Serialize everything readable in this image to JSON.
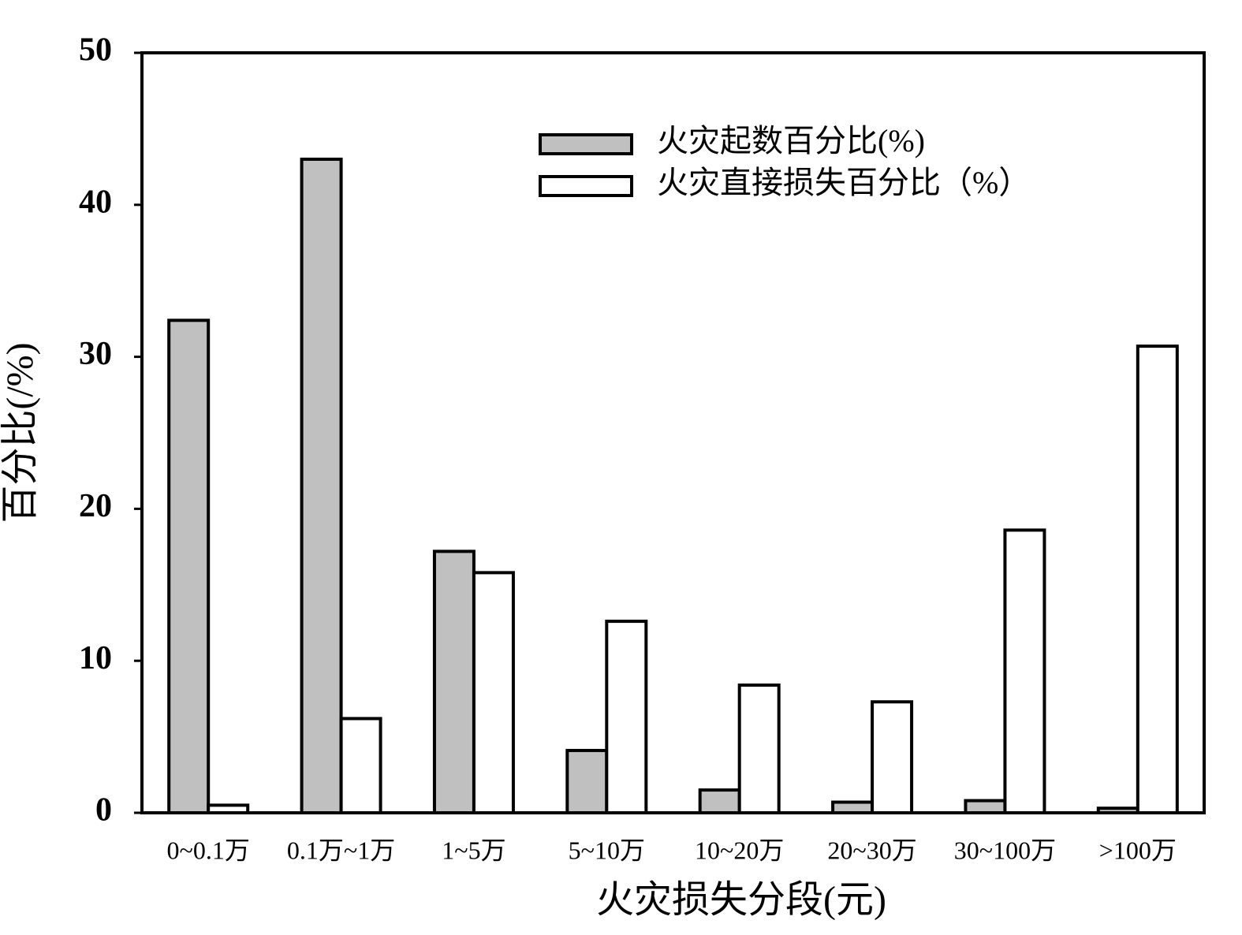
{
  "chart_data": {
    "type": "bar",
    "x_label": "火灾损失分段(元)",
    "y_label": "百分比(/%)",
    "categories": [
      "0~0.1万",
      "0.1万~1万",
      "1~5万",
      "5~10万",
      "10~20万",
      "20~30万",
      "30~100万",
      ">100万"
    ],
    "series": [
      {
        "name": "火灾起数百分比(%)",
        "color": "#c0c0c0",
        "values": [
          32.4,
          43.0,
          17.2,
          4.1,
          1.5,
          0.7,
          0.8,
          0.3
        ]
      },
      {
        "name": "火灾直接损失百分比（%）",
        "color": "#ffffff",
        "values": [
          0.5,
          6.2,
          15.8,
          12.6,
          8.4,
          7.3,
          18.6,
          30.7
        ]
      }
    ],
    "ylim": [
      0,
      50
    ],
    "yticks": [
      0,
      10,
      20,
      30,
      40,
      50
    ],
    "grid": false,
    "legend": "upper right"
  }
}
